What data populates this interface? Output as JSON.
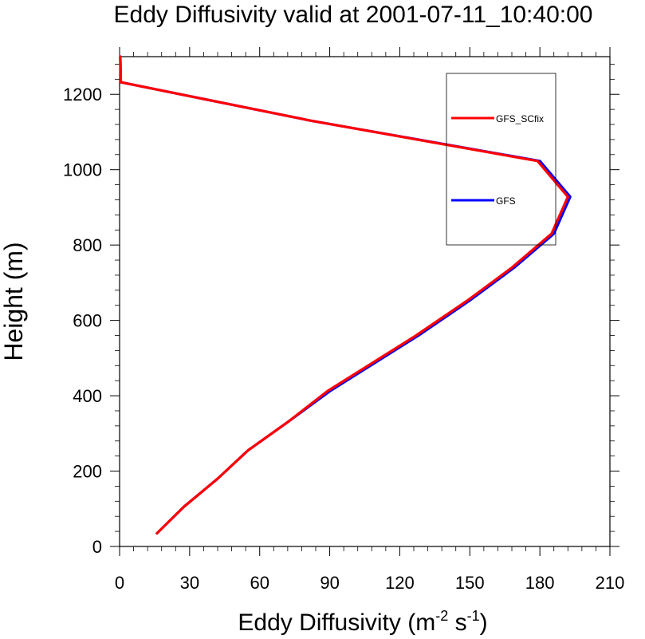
{
  "chart_data": {
    "type": "line",
    "title": "Eddy Diffusivity valid at 2001-07-11_10:40:00",
    "xlabel": "Eddy Diffusivity",
    "xlabel_units": {
      "open": "(m",
      "exp1": "-2",
      "mid": " s",
      "exp2": "-1",
      "close": ")"
    },
    "ylabel": "Height (m)",
    "xlim": [
      0,
      210
    ],
    "ylim": [
      0,
      1300
    ],
    "xticks": [
      0,
      30,
      60,
      90,
      120,
      150,
      180,
      210
    ],
    "yticks": [
      0,
      200,
      400,
      600,
      800,
      1000,
      1200
    ],
    "grid": false,
    "legend_position": "top-right",
    "series": [
      {
        "name": "GFS",
        "color": "#0000ff",
        "points": [
          [
            16,
            35
          ],
          [
            27.5,
            105
          ],
          [
            42,
            180
          ],
          [
            55,
            255
          ],
          [
            72,
            330
          ],
          [
            90,
            412
          ],
          [
            128,
            560
          ],
          [
            150,
            653
          ],
          [
            169,
            740
          ],
          [
            186,
            830
          ],
          [
            193,
            928
          ],
          [
            180,
            1023
          ],
          [
            82,
            1130
          ],
          [
            0.5,
            1232
          ],
          [
            0.3,
            1300
          ]
        ]
      },
      {
        "name": "GFS_SCfix",
        "color": "#ff0000",
        "points": [
          [
            16,
            35
          ],
          [
            27.5,
            105
          ],
          [
            42,
            180
          ],
          [
            55,
            255
          ],
          [
            72,
            330
          ],
          [
            89,
            412
          ],
          [
            127,
            560
          ],
          [
            149,
            653
          ],
          [
            168,
            740
          ],
          [
            185,
            830
          ],
          [
            192,
            928
          ],
          [
            179,
            1023
          ],
          [
            82,
            1130
          ],
          [
            0.5,
            1232
          ],
          [
            0.3,
            1300
          ]
        ]
      }
    ]
  }
}
